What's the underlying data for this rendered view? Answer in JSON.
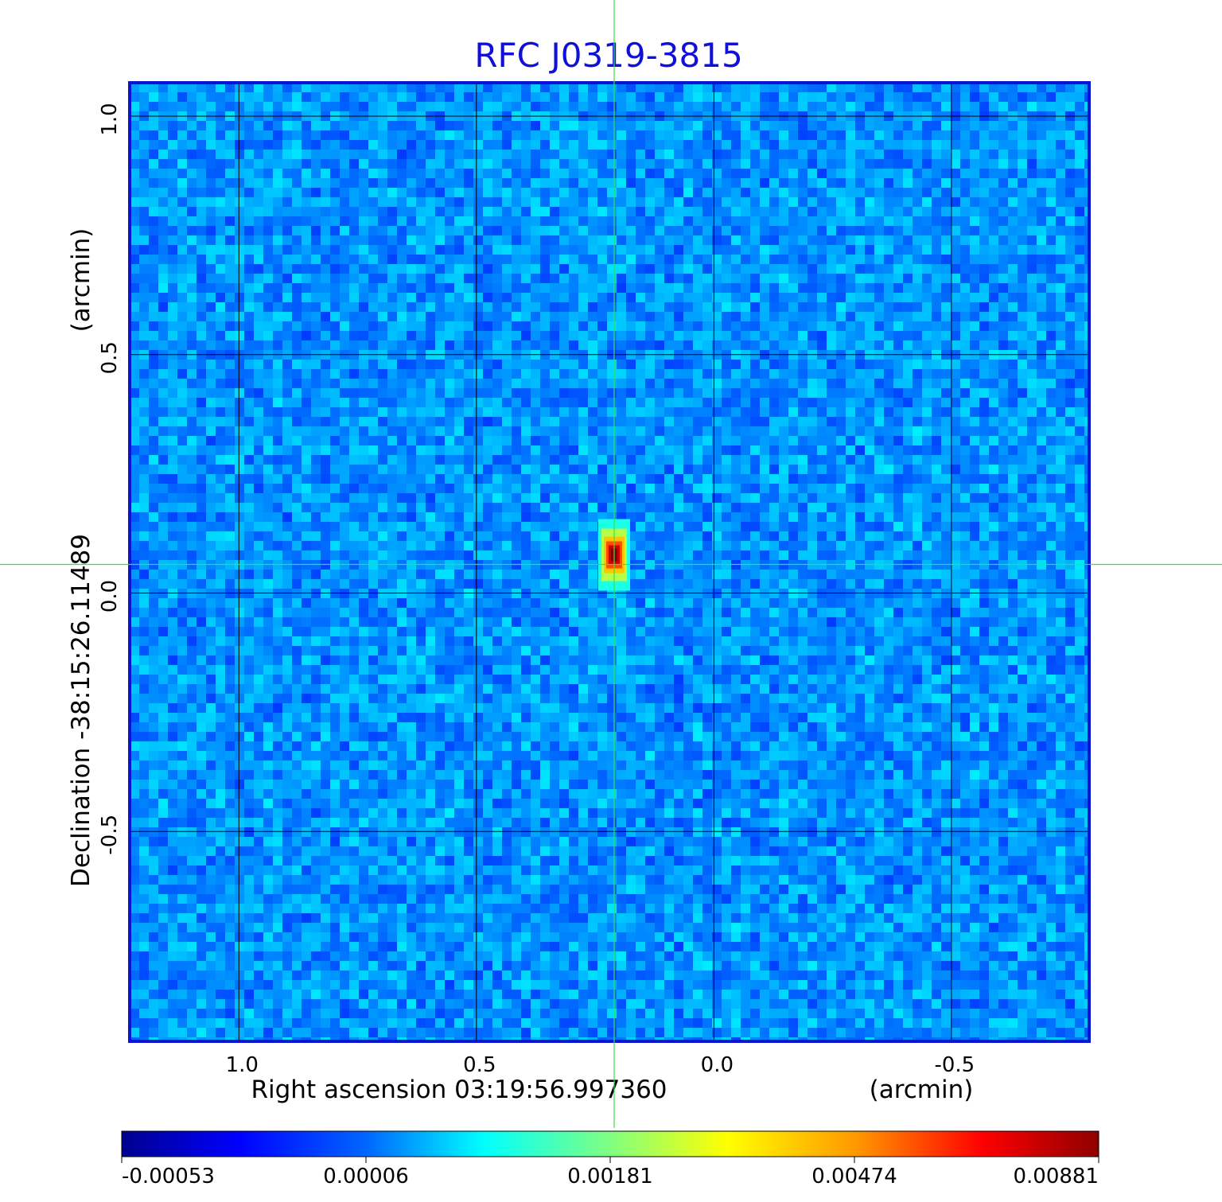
{
  "chart_data": {
    "type": "heatmap",
    "title": "RFC J0319-3815",
    "xlabel": "Right ascension  03:19:56.997360",
    "xunit": "(arcmin)",
    "ylabel": "Declination  -38:15:26.11489",
    "yunit": "(arcmin)",
    "xlim": [
      1.23,
      -0.79
    ],
    "ylim": [
      -0.94,
      1.07
    ],
    "x_ticks": [
      1.0,
      0.5,
      0.0,
      -0.5
    ],
    "x_tick_labels": [
      "1.0",
      "0.5",
      "0.0",
      "-0.5"
    ],
    "y_ticks": [
      1.0,
      0.5,
      0.0,
      -0.5
    ],
    "y_tick_labels": [
      "1.0",
      "0.5",
      "0.0",
      "-0.5"
    ],
    "grid": true,
    "crosshair": {
      "x": 0.21,
      "y": 0.06,
      "color": "#3ee03e"
    },
    "source_peak": {
      "x": 0.21,
      "y": 0.08,
      "value": 0.00881
    },
    "background_value": 6e-05,
    "colormap": "jet",
    "colorbar": {
      "placement": "bottom",
      "min": -0.00053,
      "max": 0.00881,
      "tick_labels": [
        "-0.00053",
        "0.00006",
        "0.00181",
        "0.00474",
        "0.00881"
      ]
    },
    "colors": {
      "title": "#1010d8",
      "frame": "#0a14d0",
      "grid": "#000000",
      "crosshair": "#3ee03e"
    }
  }
}
